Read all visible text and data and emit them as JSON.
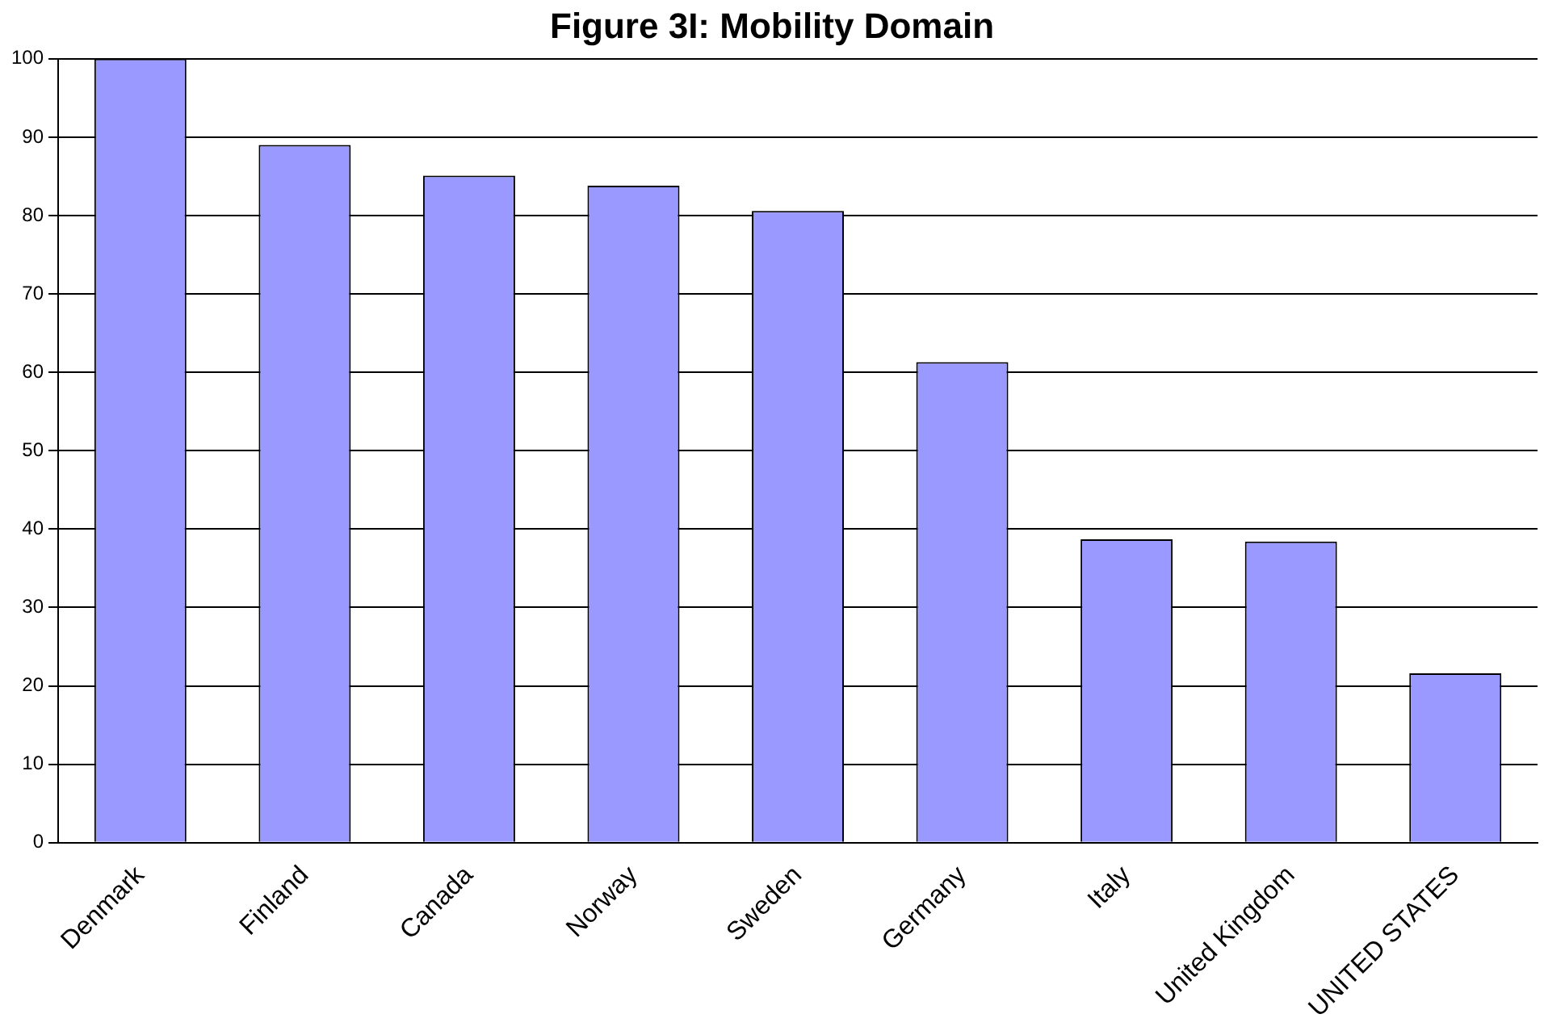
{
  "chart_data": {
    "type": "bar",
    "title": "Figure 3I: Mobility Domain",
    "categories": [
      "Denmark",
      "Finland",
      "Canada",
      "Norway",
      "Sweden",
      "Germany",
      "Italy",
      "United Kingdom",
      "UNITED STATES"
    ],
    "values": [
      100,
      89,
      85.1,
      83.8,
      80.6,
      61.3,
      38.7,
      38.4,
      21.6
    ],
    "color": "#9999ff",
    "ylim": [
      0,
      100
    ],
    "yticks": [
      0,
      10,
      20,
      30,
      40,
      50,
      60,
      70,
      80,
      90,
      100
    ],
    "grid": "y"
  }
}
